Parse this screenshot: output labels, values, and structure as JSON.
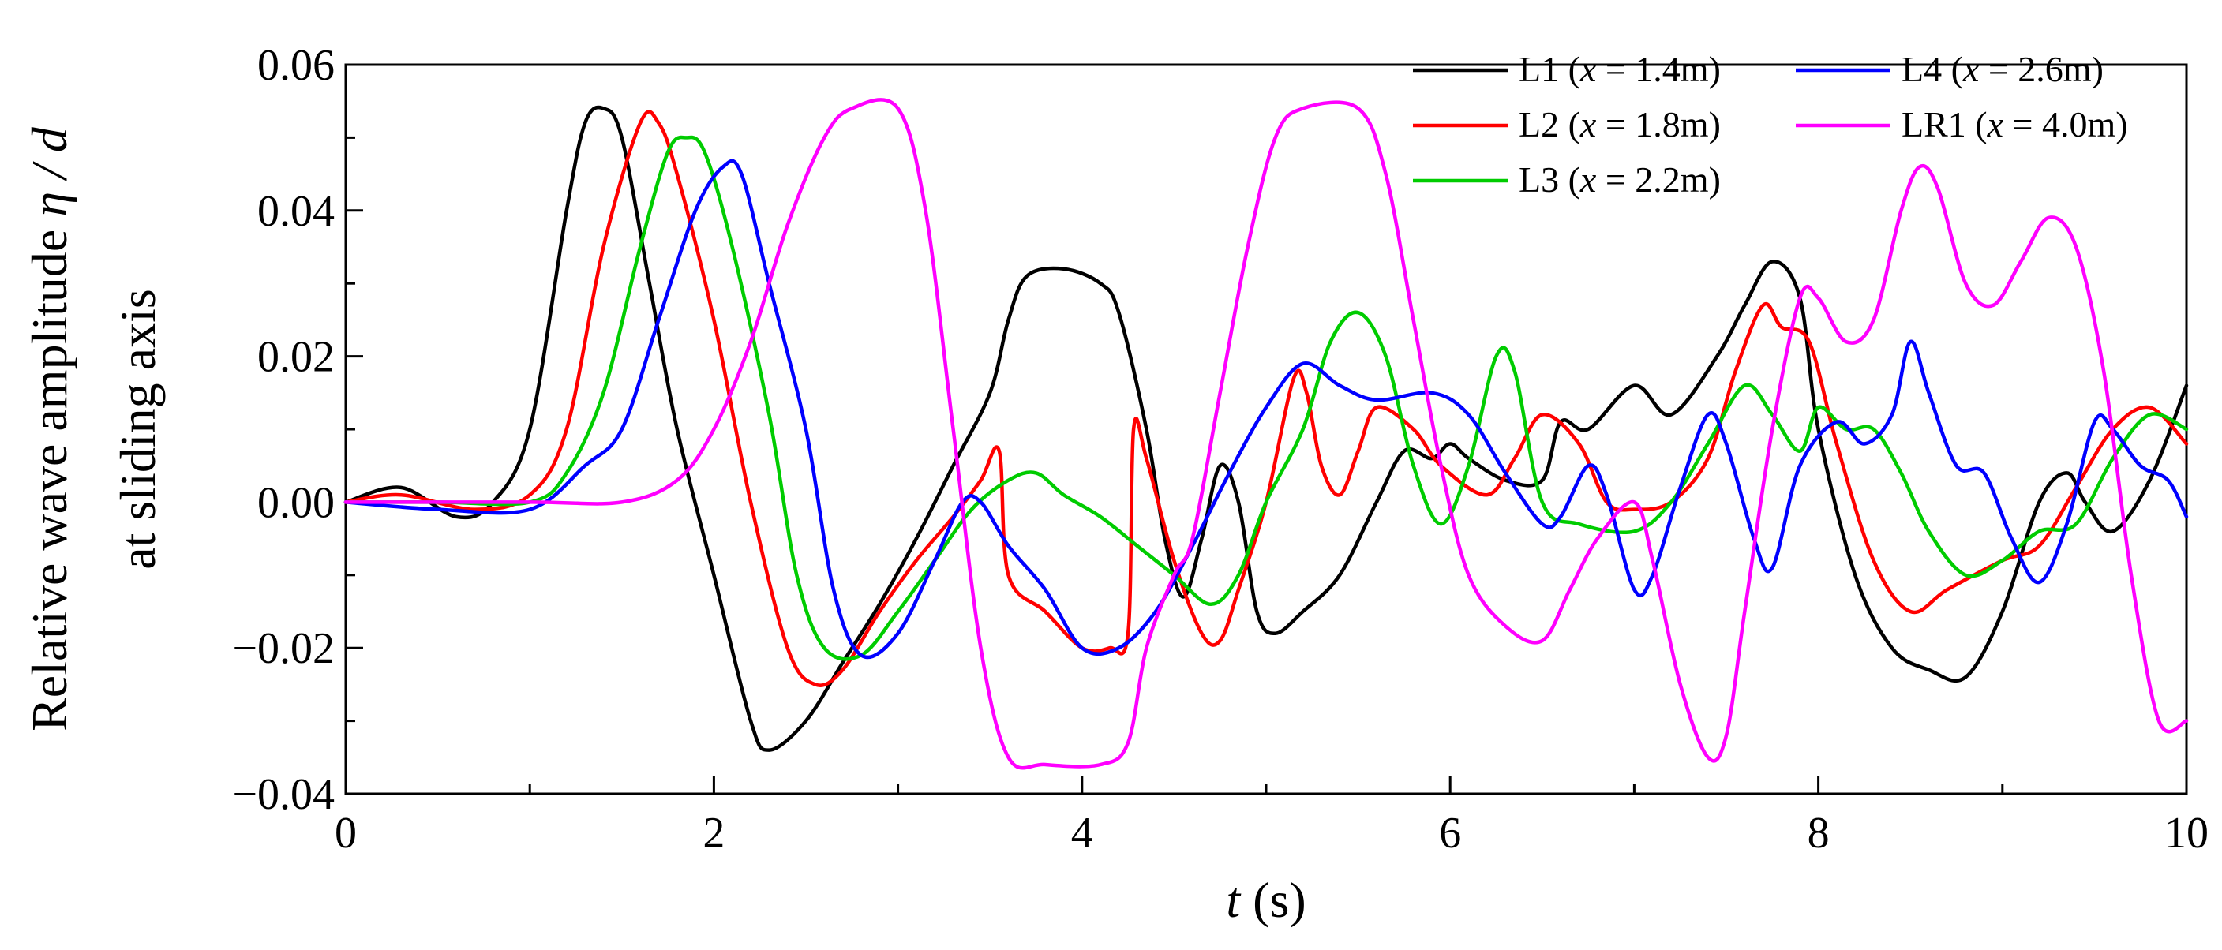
{
  "chart_data": {
    "type": "line",
    "xlabel": {
      "var": "t",
      "unit": " (s)"
    },
    "ylabel": {
      "line1_pre": "Relative wave amplitude ",
      "line1_var": "η / d",
      "line2": "at sliding axis"
    },
    "xlim": [
      0,
      10
    ],
    "ylim": [
      -0.04,
      0.06
    ],
    "xticks": [
      0,
      2,
      4,
      6,
      8,
      10
    ],
    "xtick_labels": [
      "0",
      "2",
      "4",
      "6",
      "8",
      "10"
    ],
    "yticks": [
      -0.04,
      -0.02,
      0.0,
      0.02,
      0.04,
      0.06
    ],
    "ytick_labels": [
      "−0.04",
      "−0.02",
      "0.00",
      "0.02",
      "0.04",
      "0.06"
    ],
    "grid": false,
    "legend_position": "top-right",
    "series": [
      {
        "name": "L1",
        "sensor_x": "1.4m",
        "color": "#000000",
        "points": [
          [
            0,
            0
          ],
          [
            0.3,
            0.002
          ],
          [
            0.6,
            -0.002
          ],
          [
            0.8,
            0.0
          ],
          [
            1.0,
            0.01
          ],
          [
            1.2,
            0.04
          ],
          [
            1.3,
            0.052
          ],
          [
            1.4,
            0.054
          ],
          [
            1.5,
            0.05
          ],
          [
            1.65,
            0.03
          ],
          [
            1.8,
            0.01
          ],
          [
            2.0,
            -0.01
          ],
          [
            2.2,
            -0.03
          ],
          [
            2.3,
            -0.034
          ],
          [
            2.5,
            -0.03
          ],
          [
            2.7,
            -0.022
          ],
          [
            2.9,
            -0.014
          ],
          [
            3.1,
            -0.005
          ],
          [
            3.3,
            0.005
          ],
          [
            3.5,
            0.015
          ],
          [
            3.6,
            0.025
          ],
          [
            3.7,
            0.031
          ],
          [
            3.9,
            0.032
          ],
          [
            4.1,
            0.03
          ],
          [
            4.2,
            0.026
          ],
          [
            4.35,
            0.01
          ],
          [
            4.45,
            -0.005
          ],
          [
            4.55,
            -0.013
          ],
          [
            4.65,
            -0.005
          ],
          [
            4.75,
            0.005
          ],
          [
            4.85,
            0.0
          ],
          [
            4.95,
            -0.015
          ],
          [
            5.05,
            -0.018
          ],
          [
            5.2,
            -0.015
          ],
          [
            5.4,
            -0.01
          ],
          [
            5.6,
            0.0
          ],
          [
            5.75,
            0.007
          ],
          [
            5.9,
            0.006
          ],
          [
            6.0,
            0.008
          ],
          [
            6.1,
            0.006
          ],
          [
            6.3,
            0.003
          ],
          [
            6.5,
            0.003
          ],
          [
            6.6,
            0.011
          ],
          [
            6.75,
            0.01
          ],
          [
            7.0,
            0.016
          ],
          [
            7.2,
            0.012
          ],
          [
            7.45,
            0.02
          ],
          [
            7.6,
            0.027
          ],
          [
            7.75,
            0.033
          ],
          [
            7.9,
            0.028
          ],
          [
            8.0,
            0.01
          ],
          [
            8.2,
            -0.01
          ],
          [
            8.4,
            -0.02
          ],
          [
            8.6,
            -0.023
          ],
          [
            8.8,
            -0.024
          ],
          [
            9.0,
            -0.015
          ],
          [
            9.2,
            0.0
          ],
          [
            9.35,
            0.004
          ],
          [
            9.45,
            0.0
          ],
          [
            9.6,
            -0.004
          ],
          [
            9.8,
            0.003
          ],
          [
            10.0,
            0.016
          ]
        ]
      },
      {
        "name": "L2",
        "sensor_x": "1.8m",
        "color": "#ff0000",
        "points": [
          [
            0,
            0
          ],
          [
            0.3,
            0.001
          ],
          [
            0.7,
            -0.001
          ],
          [
            1.0,
            0.001
          ],
          [
            1.2,
            0.01
          ],
          [
            1.4,
            0.035
          ],
          [
            1.6,
            0.052
          ],
          [
            1.7,
            0.052
          ],
          [
            1.8,
            0.045
          ],
          [
            2.0,
            0.025
          ],
          [
            2.2,
            0.0
          ],
          [
            2.4,
            -0.02
          ],
          [
            2.55,
            -0.025
          ],
          [
            2.7,
            -0.023
          ],
          [
            2.9,
            -0.015
          ],
          [
            3.1,
            -0.008
          ],
          [
            3.3,
            -0.002
          ],
          [
            3.45,
            0.003
          ],
          [
            3.55,
            0.007
          ],
          [
            3.6,
            -0.01
          ],
          [
            3.8,
            -0.015
          ],
          [
            4.0,
            -0.02
          ],
          [
            4.15,
            -0.02
          ],
          [
            4.25,
            -0.018
          ],
          [
            4.28,
            0.01
          ],
          [
            4.35,
            0.006
          ],
          [
            4.5,
            -0.008
          ],
          [
            4.65,
            -0.018
          ],
          [
            4.75,
            -0.019
          ],
          [
            4.85,
            -0.012
          ],
          [
            5.0,
            0.0
          ],
          [
            5.15,
            0.017
          ],
          [
            5.22,
            0.015
          ],
          [
            5.3,
            0.005
          ],
          [
            5.4,
            0.001
          ],
          [
            5.5,
            0.007
          ],
          [
            5.6,
            0.013
          ],
          [
            5.8,
            0.01
          ],
          [
            5.95,
            0.005
          ],
          [
            6.2,
            0.001
          ],
          [
            6.35,
            0.006
          ],
          [
            6.5,
            0.012
          ],
          [
            6.7,
            0.008
          ],
          [
            6.85,
            0.0
          ],
          [
            7.0,
            -0.001
          ],
          [
            7.2,
            0.0
          ],
          [
            7.4,
            0.006
          ],
          [
            7.55,
            0.018
          ],
          [
            7.7,
            0.027
          ],
          [
            7.8,
            0.024
          ],
          [
            7.95,
            0.022
          ],
          [
            8.1,
            0.008
          ],
          [
            8.3,
            -0.008
          ],
          [
            8.5,
            -0.015
          ],
          [
            8.7,
            -0.012
          ],
          [
            9.0,
            -0.008
          ],
          [
            9.2,
            -0.006
          ],
          [
            9.4,
            0.002
          ],
          [
            9.6,
            0.01
          ],
          [
            9.8,
            0.013
          ],
          [
            10.0,
            0.008
          ]
        ]
      },
      {
        "name": "L3",
        "sensor_x": "2.2m",
        "color": "#00cc00",
        "points": [
          [
            0,
            0
          ],
          [
            0.5,
            0.0
          ],
          [
            1.0,
            0.0
          ],
          [
            1.2,
            0.004
          ],
          [
            1.4,
            0.015
          ],
          [
            1.6,
            0.035
          ],
          [
            1.75,
            0.048
          ],
          [
            1.85,
            0.05
          ],
          [
            1.95,
            0.048
          ],
          [
            2.1,
            0.035
          ],
          [
            2.3,
            0.012
          ],
          [
            2.45,
            -0.01
          ],
          [
            2.6,
            -0.02
          ],
          [
            2.8,
            -0.021
          ],
          [
            3.0,
            -0.015
          ],
          [
            3.2,
            -0.008
          ],
          [
            3.4,
            -0.001
          ],
          [
            3.6,
            0.003
          ],
          [
            3.75,
            0.004
          ],
          [
            3.9,
            0.001
          ],
          [
            4.1,
            -0.002
          ],
          [
            4.3,
            -0.006
          ],
          [
            4.5,
            -0.01
          ],
          [
            4.7,
            -0.014
          ],
          [
            4.85,
            -0.01
          ],
          [
            5.0,
            0.0
          ],
          [
            5.2,
            0.01
          ],
          [
            5.35,
            0.022
          ],
          [
            5.5,
            0.026
          ],
          [
            5.65,
            0.02
          ],
          [
            5.8,
            0.005
          ],
          [
            5.95,
            -0.003
          ],
          [
            6.1,
            0.005
          ],
          [
            6.25,
            0.02
          ],
          [
            6.35,
            0.018
          ],
          [
            6.5,
            0.0
          ],
          [
            6.7,
            -0.003
          ],
          [
            7.0,
            -0.004
          ],
          [
            7.2,
            0.0
          ],
          [
            7.4,
            0.008
          ],
          [
            7.6,
            0.016
          ],
          [
            7.75,
            0.012
          ],
          [
            7.9,
            0.007
          ],
          [
            8.0,
            0.013
          ],
          [
            8.15,
            0.01
          ],
          [
            8.3,
            0.01
          ],
          [
            8.45,
            0.004
          ],
          [
            8.6,
            -0.004
          ],
          [
            8.8,
            -0.01
          ],
          [
            9.0,
            -0.008
          ],
          [
            9.2,
            -0.004
          ],
          [
            9.4,
            -0.003
          ],
          [
            9.6,
            0.006
          ],
          [
            9.8,
            0.012
          ],
          [
            10.0,
            0.01
          ]
        ]
      },
      {
        "name": "L4",
        "sensor_x": "2.6m",
        "color": "#0000ff",
        "points": [
          [
            0,
            0
          ],
          [
            0.5,
            -0.001
          ],
          [
            1.0,
            -0.001
          ],
          [
            1.3,
            0.005
          ],
          [
            1.5,
            0.01
          ],
          [
            1.7,
            0.025
          ],
          [
            1.9,
            0.04
          ],
          [
            2.05,
            0.046
          ],
          [
            2.15,
            0.045
          ],
          [
            2.3,
            0.03
          ],
          [
            2.5,
            0.01
          ],
          [
            2.65,
            -0.012
          ],
          [
            2.8,
            -0.021
          ],
          [
            3.0,
            -0.018
          ],
          [
            3.2,
            -0.008
          ],
          [
            3.35,
            0.0
          ],
          [
            3.45,
            0.0
          ],
          [
            3.6,
            -0.006
          ],
          [
            3.8,
            -0.012
          ],
          [
            4.0,
            -0.02
          ],
          [
            4.2,
            -0.02
          ],
          [
            4.4,
            -0.015
          ],
          [
            4.6,
            -0.006
          ],
          [
            4.8,
            0.004
          ],
          [
            5.0,
            0.013
          ],
          [
            5.2,
            0.019
          ],
          [
            5.4,
            0.016
          ],
          [
            5.6,
            0.014
          ],
          [
            5.9,
            0.015
          ],
          [
            6.1,
            0.012
          ],
          [
            6.3,
            0.004
          ],
          [
            6.5,
            -0.003
          ],
          [
            6.6,
            -0.002
          ],
          [
            6.75,
            0.005
          ],
          [
            6.85,
            0.001
          ],
          [
            7.0,
            -0.012
          ],
          [
            7.1,
            -0.01
          ],
          [
            7.25,
            0.002
          ],
          [
            7.4,
            0.012
          ],
          [
            7.5,
            0.008
          ],
          [
            7.65,
            -0.005
          ],
          [
            7.75,
            -0.009
          ],
          [
            7.9,
            0.005
          ],
          [
            8.1,
            0.011
          ],
          [
            8.25,
            0.008
          ],
          [
            8.4,
            0.012
          ],
          [
            8.5,
            0.022
          ],
          [
            8.6,
            0.015
          ],
          [
            8.75,
            0.005
          ],
          [
            8.9,
            0.004
          ],
          [
            9.05,
            -0.005
          ],
          [
            9.2,
            -0.011
          ],
          [
            9.35,
            -0.003
          ],
          [
            9.5,
            0.011
          ],
          [
            9.6,
            0.01
          ],
          [
            9.75,
            0.005
          ],
          [
            9.9,
            0.003
          ],
          [
            10.0,
            -0.002
          ]
        ]
      },
      {
        "name": "LR1",
        "sensor_x": "4.0m",
        "color": "#ff00ff",
        "points": [
          [
            0,
            0
          ],
          [
            1.0,
            0.0
          ],
          [
            1.5,
            0.0
          ],
          [
            1.8,
            0.003
          ],
          [
            2.0,
            0.01
          ],
          [
            2.2,
            0.022
          ],
          [
            2.4,
            0.038
          ],
          [
            2.6,
            0.05
          ],
          [
            2.75,
            0.054
          ],
          [
            3.0,
            0.054
          ],
          [
            3.15,
            0.04
          ],
          [
            3.3,
            0.01
          ],
          [
            3.45,
            -0.02
          ],
          [
            3.6,
            -0.035
          ],
          [
            3.8,
            -0.036
          ],
          [
            4.1,
            -0.036
          ],
          [
            4.25,
            -0.033
          ],
          [
            4.35,
            -0.02
          ],
          [
            4.5,
            -0.01
          ],
          [
            4.6,
            -0.005
          ],
          [
            4.75,
            0.015
          ],
          [
            4.9,
            0.035
          ],
          [
            5.05,
            0.05
          ],
          [
            5.2,
            0.054
          ],
          [
            5.5,
            0.054
          ],
          [
            5.65,
            0.045
          ],
          [
            5.8,
            0.025
          ],
          [
            5.95,
            0.005
          ],
          [
            6.1,
            -0.01
          ],
          [
            6.3,
            -0.017
          ],
          [
            6.5,
            -0.019
          ],
          [
            6.65,
            -0.012
          ],
          [
            6.8,
            -0.005
          ],
          [
            7.0,
            0.0
          ],
          [
            7.1,
            -0.008
          ],
          [
            7.25,
            -0.025
          ],
          [
            7.4,
            -0.035
          ],
          [
            7.5,
            -0.032
          ],
          [
            7.6,
            -0.015
          ],
          [
            7.75,
            0.01
          ],
          [
            7.9,
            0.028
          ],
          [
            8.0,
            0.028
          ],
          [
            8.15,
            0.022
          ],
          [
            8.3,
            0.025
          ],
          [
            8.45,
            0.04
          ],
          [
            8.55,
            0.046
          ],
          [
            8.65,
            0.043
          ],
          [
            8.8,
            0.03
          ],
          [
            8.95,
            0.027
          ],
          [
            9.1,
            0.033
          ],
          [
            9.25,
            0.039
          ],
          [
            9.4,
            0.035
          ],
          [
            9.55,
            0.018
          ],
          [
            9.7,
            -0.01
          ],
          [
            9.85,
            -0.03
          ],
          [
            10.0,
            -0.03
          ]
        ]
      }
    ]
  }
}
